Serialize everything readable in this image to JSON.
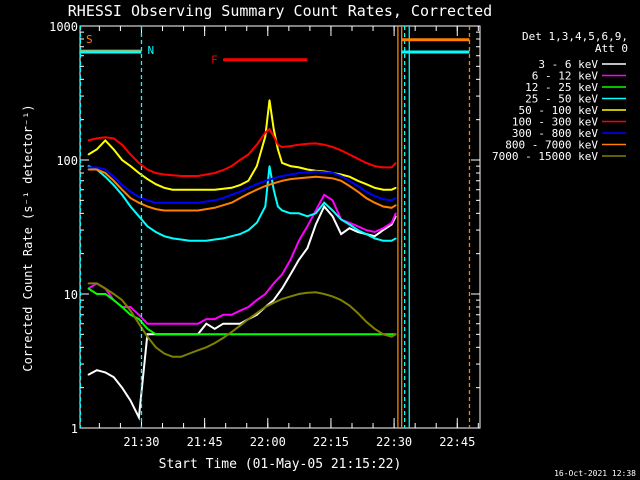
{
  "chart_data": {
    "type": "line",
    "title": "RHESSI Observing Summary Count Rates, Corrected",
    "xlabel": "Start Time (01-May-05 21:15:22)",
    "ylabel": "Corrected Count Rate (s⁻¹ detector⁻¹)",
    "yscale": "log",
    "ylim": [
      1,
      1000
    ],
    "xlim": [
      0,
      95
    ],
    "x_unit": "minutes after 21:15:22 UT",
    "yticks": [
      {
        "value": 1,
        "label": "1"
      },
      {
        "value": 10,
        "label": "10"
      },
      {
        "value": 100,
        "label": "100"
      },
      {
        "value": 1000,
        "label": "1000"
      }
    ],
    "xticks": [
      {
        "value": 14.6,
        "label": "21:30"
      },
      {
        "value": 29.6,
        "label": "21:45"
      },
      {
        "value": 44.6,
        "label": "22:00"
      },
      {
        "value": 59.6,
        "label": "22:15"
      },
      {
        "value": 74.6,
        "label": "22:30"
      },
      {
        "value": 89.6,
        "label": "22:45"
      }
    ],
    "legend": {
      "placement": "right",
      "header": [
        "Det 1,3,4,5,6,9,",
        "Att 0"
      ]
    },
    "series": [
      {
        "name": "3 - 6 keV",
        "color": "#ffffff",
        "x": [
          2,
          4,
          6,
          8,
          10,
          12,
          14,
          16,
          18,
          20,
          22,
          24,
          26,
          28,
          30,
          32,
          34,
          36,
          38,
          40,
          42,
          44,
          46,
          48,
          50,
          52,
          54,
          56,
          58,
          60,
          62,
          64,
          66,
          68,
          70,
          72,
          74,
          75
        ],
        "y": [
          2.5,
          2.7,
          2.6,
          2.4,
          2.0,
          1.6,
          1.2,
          5,
          5,
          5,
          5,
          5,
          5,
          5,
          6,
          5.5,
          6,
          6,
          6,
          6.5,
          7,
          8,
          9,
          11,
          14,
          18,
          22,
          33,
          45,
          38,
          28,
          31,
          29,
          28,
          27,
          30,
          33,
          38
        ]
      },
      {
        "name": "6 - 12 keV",
        "color": "#ff00ff",
        "x": [
          2,
          4,
          6,
          8,
          10,
          12,
          14,
          16,
          18,
          20,
          22,
          24,
          26,
          28,
          30,
          32,
          34,
          36,
          38,
          40,
          42,
          44,
          46,
          48,
          50,
          52,
          54,
          56,
          58,
          60,
          62,
          64,
          66,
          68,
          70,
          72,
          74,
          75
        ],
        "y": [
          11,
          12,
          11,
          9,
          8,
          8,
          7,
          6,
          6,
          6,
          6,
          6,
          6,
          6,
          6.5,
          6.5,
          7,
          7,
          7.5,
          8,
          9,
          10,
          12,
          14,
          18,
          25,
          32,
          42,
          55,
          50,
          36,
          34,
          32,
          30,
          29,
          31,
          34,
          40
        ]
      },
      {
        "name": "12 - 25 keV",
        "color": "#00ff00",
        "x": [
          2,
          4,
          6,
          8,
          10,
          12,
          14,
          16,
          18,
          20,
          22,
          24,
          26,
          28,
          30,
          32,
          34,
          36,
          38,
          40,
          42,
          44,
          46,
          48,
          50,
          52,
          54,
          56,
          58,
          60,
          62,
          64,
          66,
          68,
          70,
          72,
          74,
          75
        ],
        "y": [
          11,
          10,
          10,
          9,
          8,
          7,
          6.5,
          5.5,
          5,
          5,
          5,
          5,
          5,
          5,
          5,
          5,
          5,
          5,
          5,
          5,
          5,
          5,
          5,
          5,
          5,
          5,
          5,
          5,
          5,
          5,
          5,
          5,
          5,
          5,
          5,
          5,
          5,
          5
        ]
      },
      {
        "name": "25 - 50 keV",
        "color": "#00ffff",
        "x": [
          2,
          4,
          6,
          8,
          10,
          12,
          14,
          16,
          18,
          20,
          22,
          24,
          26,
          28,
          30,
          32,
          34,
          36,
          38,
          40,
          42,
          44,
          45,
          46,
          47,
          48,
          50,
          52,
          54,
          56,
          58,
          60,
          62,
          64,
          66,
          68,
          70,
          72,
          74,
          75
        ],
        "y": [
          90,
          85,
          75,
          65,
          55,
          45,
          38,
          32,
          29,
          27,
          26,
          25.5,
          25,
          25,
          25,
          25.5,
          26,
          27,
          28,
          30,
          34,
          45,
          90,
          60,
          45,
          42,
          40,
          40,
          38,
          40,
          48,
          42,
          36,
          33,
          30,
          28,
          26,
          25,
          25,
          26
        ]
      },
      {
        "name": "50 - 100 keV",
        "color": "#ffff00",
        "x": [
          2,
          4,
          6,
          8,
          10,
          12,
          14,
          16,
          18,
          20,
          22,
          24,
          26,
          28,
          30,
          32,
          34,
          36,
          38,
          40,
          42,
          44,
          45,
          46,
          47,
          48,
          50,
          52,
          54,
          56,
          58,
          60,
          62,
          64,
          66,
          68,
          70,
          72,
          74,
          75
        ],
        "y": [
          110,
          120,
          140,
          120,
          100,
          90,
          80,
          72,
          66,
          62,
          60,
          60,
          60,
          60,
          60,
          60,
          61,
          62,
          65,
          70,
          90,
          150,
          280,
          170,
          120,
          95,
          90,
          88,
          85,
          83,
          82,
          80,
          78,
          75,
          70,
          66,
          62,
          60,
          60,
          62
        ]
      },
      {
        "name": "100 - 300 keV",
        "color": "#ff0000",
        "x": [
          2,
          4,
          6,
          8,
          10,
          12,
          14,
          16,
          18,
          20,
          22,
          24,
          26,
          28,
          30,
          32,
          34,
          36,
          38,
          40,
          42,
          44,
          45,
          46,
          47,
          48,
          50,
          52,
          54,
          56,
          58,
          60,
          62,
          64,
          66,
          68,
          70,
          72,
          74,
          75
        ],
        "y": [
          140,
          145,
          148,
          145,
          130,
          110,
          95,
          85,
          80,
          78,
          77,
          76,
          76,
          76,
          78,
          80,
          84,
          90,
          100,
          110,
          130,
          160,
          170,
          150,
          130,
          125,
          127,
          130,
          132,
          133,
          130,
          125,
          118,
          110,
          102,
          95,
          90,
          88,
          88,
          95
        ]
      },
      {
        "name": "300 - 800 keV",
        "color": "#0000ff",
        "x": [
          2,
          4,
          6,
          8,
          10,
          12,
          14,
          16,
          18,
          20,
          22,
          24,
          26,
          28,
          30,
          32,
          34,
          36,
          38,
          40,
          42,
          44,
          46,
          48,
          50,
          52,
          54,
          56,
          58,
          60,
          62,
          64,
          66,
          68,
          70,
          72,
          74,
          75
        ],
        "y": [
          88,
          88,
          85,
          75,
          65,
          58,
          53,
          50,
          48,
          48,
          48,
          48,
          48,
          48,
          49,
          50,
          52,
          55,
          58,
          62,
          66,
          70,
          73,
          76,
          78,
          80,
          81,
          82,
          81,
          80,
          76,
          70,
          64,
          58,
          54,
          51,
          50,
          52
        ]
      },
      {
        "name": "800 - 7000 keV",
        "color": "#ff8000",
        "x": [
          2,
          4,
          6,
          8,
          10,
          12,
          14,
          16,
          18,
          20,
          22,
          24,
          26,
          28,
          30,
          32,
          34,
          36,
          38,
          40,
          42,
          44,
          46,
          48,
          50,
          52,
          54,
          56,
          58,
          60,
          62,
          64,
          66,
          68,
          70,
          72,
          74,
          75
        ],
        "y": [
          85,
          85,
          80,
          70,
          60,
          52,
          48,
          45,
          43,
          42,
          42,
          42,
          42,
          42,
          43,
          44,
          46,
          48,
          52,
          56,
          60,
          64,
          67,
          70,
          72,
          73,
          74,
          75,
          74,
          73,
          70,
          64,
          58,
          52,
          48,
          45,
          44,
          46
        ]
      },
      {
        "name": "7000 - 15000 keV",
        "color": "#808000",
        "x": [
          2,
          4,
          6,
          8,
          10,
          12,
          14,
          16,
          18,
          20,
          22,
          24,
          26,
          28,
          30,
          32,
          34,
          36,
          38,
          40,
          42,
          44,
          46,
          48,
          50,
          52,
          54,
          56,
          58,
          60,
          62,
          64,
          66,
          68,
          70,
          72,
          74,
          75
        ],
        "y": [
          12,
          12,
          11,
          10,
          9,
          7.5,
          6,
          4.8,
          4,
          3.6,
          3.4,
          3.4,
          3.6,
          3.8,
          4,
          4.3,
          4.7,
          5.2,
          5.8,
          6.5,
          7.2,
          8,
          8.6,
          9.2,
          9.6,
          10,
          10.2,
          10.3,
          10,
          9.6,
          9,
          8.2,
          7.2,
          6.2,
          5.5,
          5,
          4.8,
          5
        ]
      }
    ],
    "annotations": [
      {
        "label": "S",
        "color": "#ff8000",
        "x": [
          0,
          14.6
        ],
        "level": 650
      },
      {
        "label": "N",
        "color": "#00ffff",
        "x": [
          0,
          14.6
        ],
        "level": 640
      },
      {
        "label": "F",
        "color": "#ff0000",
        "x": [
          34,
          54
        ],
        "level": 560
      },
      {
        "label": "",
        "color": "#ff8000",
        "x": [
          76.4,
          92.5
        ],
        "level": 790
      },
      {
        "label": "",
        "color": "#00ffff",
        "x": [
          76.4,
          92.5
        ],
        "level": 640
      }
    ],
    "vlines": [
      {
        "x": 0.1,
        "color": "#00ffff",
        "style": "dashed"
      },
      {
        "x": 14.6,
        "color": "#00ffff",
        "style": "dashed"
      },
      {
        "x": 75.5,
        "color": "#ff8000",
        "style": "solid"
      },
      {
        "x": 76.4,
        "color": "#ff8000",
        "style": "solid"
      },
      {
        "x": 78.2,
        "color": "#00ffff",
        "style": "solid"
      },
      {
        "x": 77.1,
        "color": "#00ffff",
        "style": "dashed"
      },
      {
        "x": 92.5,
        "color": "#ff8000",
        "style": "dashed"
      }
    ],
    "timestamp": "16-Oct-2021 12:38"
  }
}
